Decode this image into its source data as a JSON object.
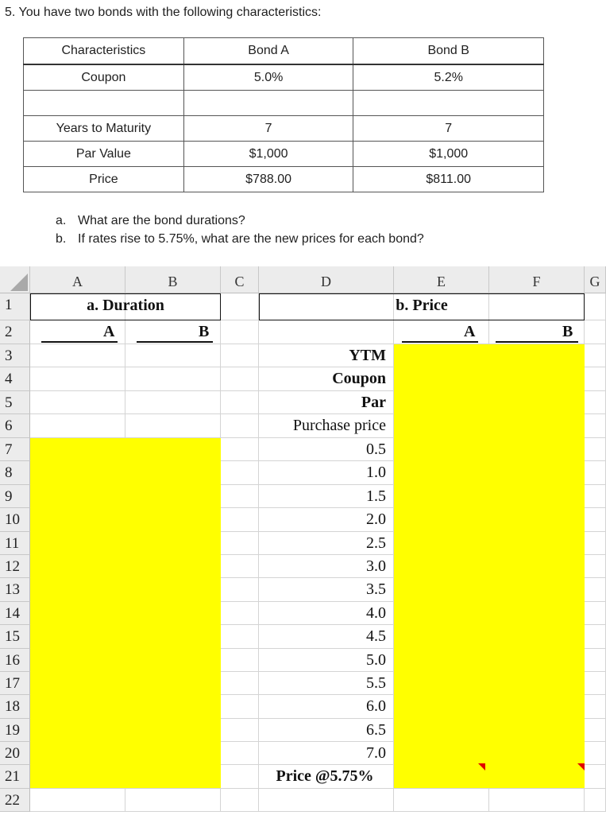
{
  "question": {
    "title": "5.  You have two bonds with the following characteristics:",
    "parts": [
      {
        "label": "a.",
        "text": "What are the bond durations?"
      },
      {
        "label": "b.",
        "text": "If rates rise to 5.75%, what are the new prices for each bond?"
      }
    ]
  },
  "bond_table": {
    "headers": [
      "Characteristics",
      "Bond A",
      "Bond B"
    ],
    "rows": [
      [
        "Coupon",
        "5.0%",
        "5.2%"
      ],
      [
        "",
        "",
        ""
      ],
      [
        "Years to Maturity",
        "7",
        "7"
      ],
      [
        "Par Value",
        "$1,000",
        "$1,000"
      ],
      [
        "Price",
        "$788.00",
        "$811.00"
      ]
    ]
  },
  "sheet": {
    "columns": [
      "A",
      "B",
      "C",
      "D",
      "E",
      "F",
      "G"
    ],
    "rows": [
      "1",
      "2",
      "3",
      "4",
      "5",
      "6",
      "7",
      "8",
      "9",
      "10",
      "11",
      "12",
      "13",
      "14",
      "15",
      "16",
      "17",
      "18",
      "19",
      "20",
      "21",
      "22"
    ],
    "duration_header": "a. Duration",
    "price_header": "b. Price",
    "sub_a": "A",
    "sub_b": "B",
    "labels": [
      "YTM",
      "Coupon",
      "Par",
      "Purchase price"
    ],
    "periods": [
      "0.5",
      "1.0",
      "1.5",
      "2.0",
      "2.5",
      "3.0",
      "3.5",
      "4.0",
      "4.5",
      "5.0",
      "5.5",
      "6.0",
      "6.5",
      "7.0"
    ],
    "price_label": "Price @5.75%",
    "highlight_color": "#ffff00"
  }
}
